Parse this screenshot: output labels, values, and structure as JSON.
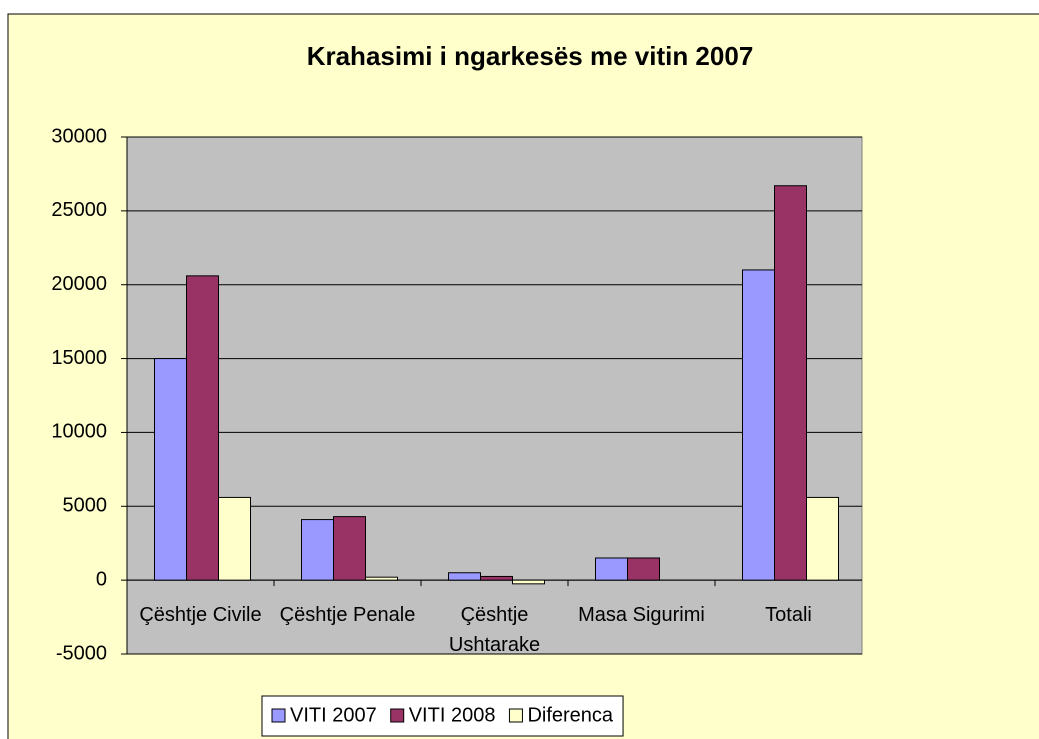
{
  "chart_data": {
    "type": "bar",
    "title": "Krahasimi i ngarkesës me vitin 2007",
    "categories": [
      "Çështje Civile",
      "Çështje Penale",
      "Çështje Ushtarake",
      "Masa Sigurimi",
      "Totali"
    ],
    "series": [
      {
        "name": "VITI 2007",
        "color": "#9999FF",
        "values": [
          15000,
          4100,
          500,
          1500,
          21000
        ]
      },
      {
        "name": "VITI 2008",
        "color": "#993366",
        "values": [
          20600,
          4300,
          250,
          1500,
          26700
        ]
      },
      {
        "name": "Diferenca",
        "color": "#FFFFCC",
        "values": [
          5600,
          200,
          -250,
          0,
          5600
        ]
      }
    ],
    "ylim": [
      -5000,
      30000
    ],
    "yticks": [
      -5000,
      0,
      5000,
      10000,
      15000,
      20000,
      25000,
      30000
    ],
    "grid": true,
    "legend": "bottom"
  }
}
